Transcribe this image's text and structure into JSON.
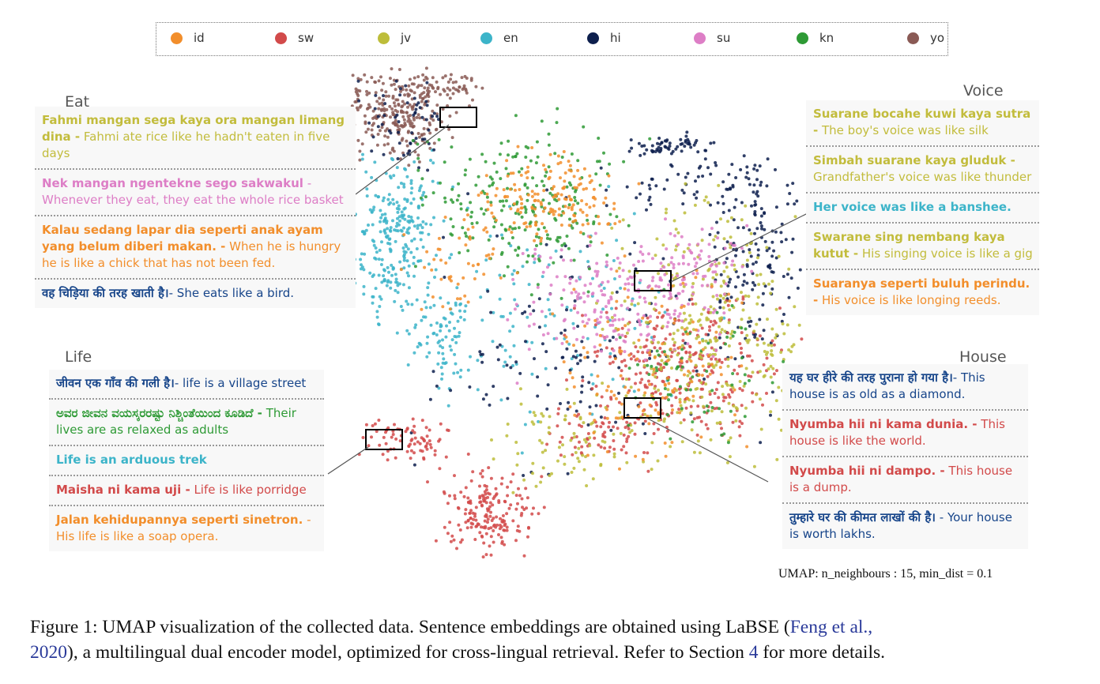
{
  "colors": {
    "id": "#f28e2b",
    "sw": "#d24a4a",
    "jv": "#bdbd3a",
    "en": "#3cb4c9",
    "hi": "#0d1f4d",
    "su": "#dd7ec6",
    "kn": "#2e9a35",
    "yo": "#8a5a55",
    "hi_text": "#17458a",
    "jv_text": "#c2bc3c"
  },
  "chart_data": {
    "type": "scatter",
    "legend": [
      "id",
      "sw",
      "jv",
      "en",
      "hi",
      "su",
      "kn",
      "yo"
    ],
    "legend_placement": "top",
    "axes_visible": false,
    "grid": false,
    "note": "UMAP: n_neighbours : 15, min_dist = 0.1"
  },
  "groups": {
    "eat": {
      "title": "Eat",
      "entries": [
        {
          "lang": "jv",
          "src": "Fahmi mangan sega kaya ora mangan limang dina -",
          "tr": " Fahmi ate rice like he hadn't eaten in five days"
        },
        {
          "lang": "su",
          "src": "Nek mangan ngentekne sego sakwakul",
          "tr": " - Whenever they  eat, they eat the whole rice basket"
        },
        {
          "lang": "id",
          "src": "Kalau sedang lapar dia seperti anak ayam yang belum diberi makan. -",
          "tr": " When he is hungry he is like a chick that has not been fed."
        },
        {
          "lang": "hi",
          "src": "वह चिड़िया की तरह खाती है।",
          "tr": "- She eats like a bird."
        }
      ]
    },
    "life": {
      "title": "Life",
      "entries": [
        {
          "lang": "hi",
          "src": "जीवन एक गाँव की गली है।",
          "tr": "- life is a village street"
        },
        {
          "lang": "kn",
          "src": "ಅವರ ಜೀವನ ವಯಸ್ಕರರಷ್ಟು ನಿಶ್ಚಿಂತೆಯಿಂದ ಕೂಡಿದೆ -",
          "tr": " Their lives are as relaxed as adults"
        },
        {
          "lang": "en",
          "src": "Life is an arduous trek",
          "tr": ""
        },
        {
          "lang": "sw",
          "src": "Maisha ni kama uji -",
          "tr": " Life is like porridge"
        },
        {
          "lang": "id",
          "src": "Jalan kehidupannya seperti sinetron.",
          "tr": " - His life is like a soap opera."
        }
      ]
    },
    "voice": {
      "title": "Voice",
      "entries": [
        {
          "lang": "jv",
          "src": "Suarane bocahe kuwi kaya sutra -",
          "tr": " The boy's voice was like silk"
        },
        {
          "lang": "jv",
          "src": "Simbah suarane kaya gluduk -",
          "tr": " Grandfather's voice was like thunder"
        },
        {
          "lang": "en",
          "src": "Her voice was like a banshee.",
          "tr": ""
        },
        {
          "lang": "jv",
          "src": "Swarane sing nembang kaya kutut -",
          "tr": " His singing voice is like a gig"
        },
        {
          "lang": "id",
          "src": "Suaranya seperti buluh perindu. -",
          "tr": " His voice is like longing reeds."
        }
      ]
    },
    "house": {
      "title": "House",
      "entries": [
        {
          "lang": "hi",
          "src": "यह घर हीरे की तरह पुराना हो गया है।",
          "tr": "- This house is as old as a diamond."
        },
        {
          "lang": "sw",
          "src": "Nyumba hii ni kama dunia. -",
          "tr": " This house is like the world."
        },
        {
          "lang": "sw",
          "src": "Nyumba hii ni dampo. -",
          "tr": " This house is a dump."
        },
        {
          "lang": "hi",
          "src": "तुम्हारे घर की कीमत लाखों की है।",
          "tr": " - Your house is worth lakhs."
        }
      ]
    }
  },
  "umap_note": "UMAP: n_neighbours : 15, min_dist = 0.1",
  "caption": {
    "part1": "Figure 1:  UMAP visualization of the collected data. Sentence embeddings are obtained using LaBSE (",
    "ref1": "Feng et al.,",
    "ref1b": "2020",
    "part2": "), a multilingual dual encoder model, optimized for cross-lingual retrieval. Refer to Section ",
    "ref2": "4",
    "part3": " for more details."
  }
}
